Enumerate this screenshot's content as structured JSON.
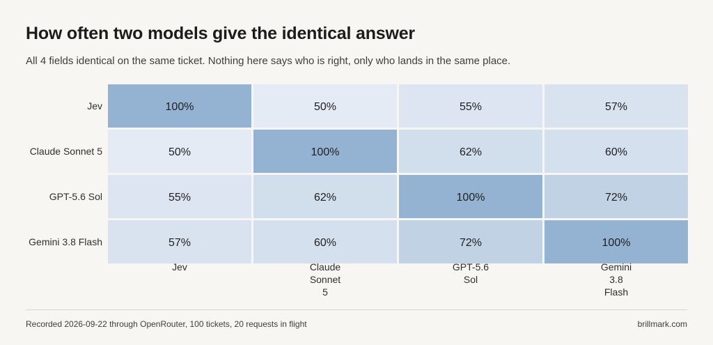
{
  "title": "How often two models give the identical answer",
  "subtitle": "All 4 fields identical on the same ticket. Nothing here says who is right, only who lands in the same place.",
  "footer": {
    "note": "Recorded 2026-09-22 through OpenRouter, 100 tickets, 20 requests in flight",
    "site": "brillmark.com"
  },
  "colors": {
    "background": "#f7f6f2",
    "cell_low": "#e4ebf4",
    "cell_high": "#94b3d2",
    "cell_text": "#1f1f1f",
    "label_text": "#2f2f2f"
  },
  "chart_data": {
    "type": "heatmap",
    "rows": [
      "Jev",
      "Claude Sonnet 5",
      "GPT-5.6 Sol",
      "Gemini 3.8 Flash"
    ],
    "columns": [
      [
        "Jev"
      ],
      [
        "Claude",
        "Sonnet",
        "5"
      ],
      [
        "GPT-5.6",
        "Sol"
      ],
      [
        "Gemini",
        "3.8",
        "Flash"
      ]
    ],
    "values": [
      [
        100,
        50,
        55,
        57
      ],
      [
        50,
        100,
        62,
        60
      ],
      [
        55,
        62,
        100,
        72
      ],
      [
        57,
        60,
        72,
        100
      ]
    ],
    "value_format": "{v}%",
    "range": [
      50,
      100
    ]
  }
}
